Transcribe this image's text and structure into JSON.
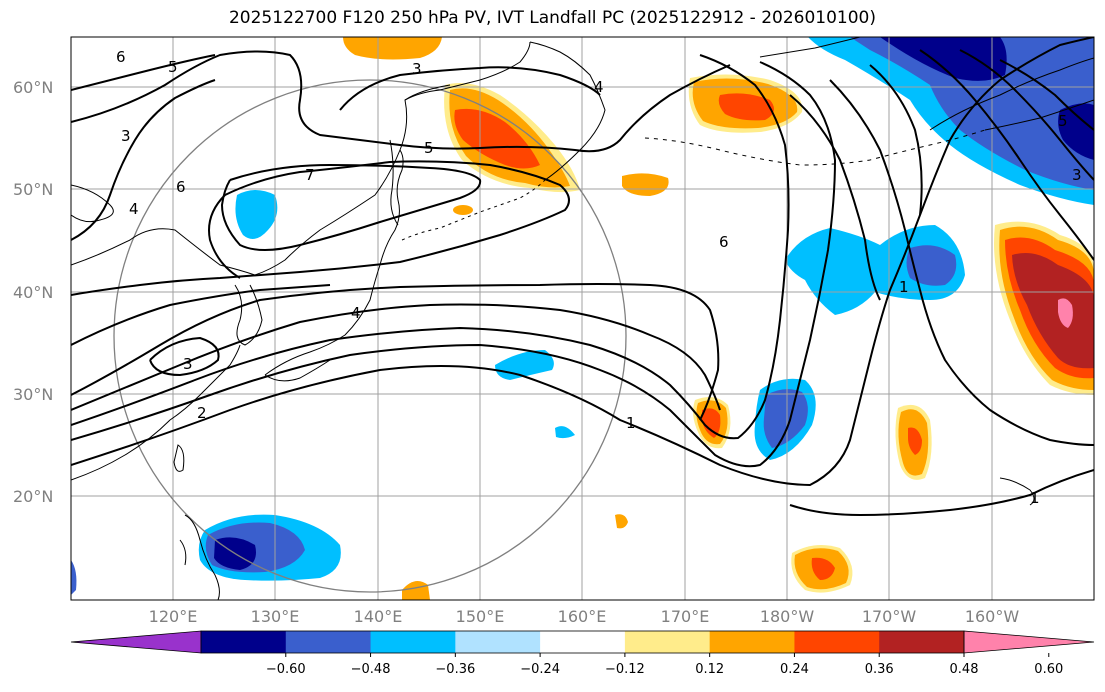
{
  "title": "2025122700 F120 250 hPa PV, IVT Landfall PC (2025122912 - 2026010100)",
  "map": {
    "lat_labels": [
      "60°N",
      "50°N",
      "40°N",
      "30°N",
      "20°N"
    ],
    "lon_labels": [
      "120°E",
      "130°E",
      "140°E",
      "150°E",
      "160°E",
      "170°E",
      "180°W",
      "170°W",
      "160°W"
    ],
    "grid": true,
    "contour_levels": [
      "1",
      "2",
      "3",
      "4",
      "5",
      "6",
      "7"
    ]
  },
  "colorbar": {
    "ticks": [
      "−0.60",
      "−0.48",
      "−0.36",
      "−0.24",
      "−0.12",
      "0.12",
      "0.24",
      "0.36",
      "0.48",
      "0.60"
    ],
    "colors": [
      "#9932cc",
      "#00008b",
      "#3a5fcd",
      "#00bfff",
      "#b0e2ff",
      "#ffffff",
      "#ffec8b",
      "#ffa500",
      "#ff4500",
      "#b22222",
      "#ff82ab"
    ]
  }
}
